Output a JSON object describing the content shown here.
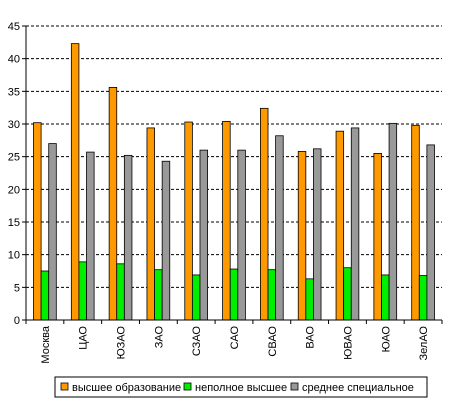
{
  "chart_data": {
    "type": "bar",
    "title": "",
    "xlabel": "",
    "ylabel": "",
    "ylim": [
      0,
      45
    ],
    "ytick_step": 5,
    "yticks": [
      "0",
      "5",
      "10",
      "15",
      "20",
      "25",
      "30",
      "35",
      "40",
      "45"
    ],
    "grid": "horizontal dashed",
    "legend_position": "bottom",
    "categories": [
      "Москва",
      "ЦАО",
      "ЮЗАО",
      "ЗАО",
      "СЗАО",
      "САО",
      "СВАО",
      "ВАО",
      "ЮВАО",
      "ЮАО",
      "ЗелАО"
    ],
    "series": [
      {
        "name": "высшее образование",
        "color": "#ff9900",
        "values": [
          30.2,
          42.3,
          35.6,
          29.4,
          30.3,
          30.4,
          32.4,
          25.8,
          28.9,
          25.5,
          29.8
        ]
      },
      {
        "name": "неполное высшее",
        "color": "#00ee00",
        "values": [
          7.5,
          8.9,
          8.6,
          7.7,
          6.9,
          7.8,
          7.7,
          6.3,
          8.0,
          6.9,
          6.8
        ]
      },
      {
        "name": "среднее специальное",
        "color": "#999999",
        "values": [
          27.0,
          25.7,
          25.2,
          24.3,
          26.0,
          26.0,
          28.2,
          26.2,
          29.4,
          30.1,
          26.8
        ]
      }
    ]
  }
}
